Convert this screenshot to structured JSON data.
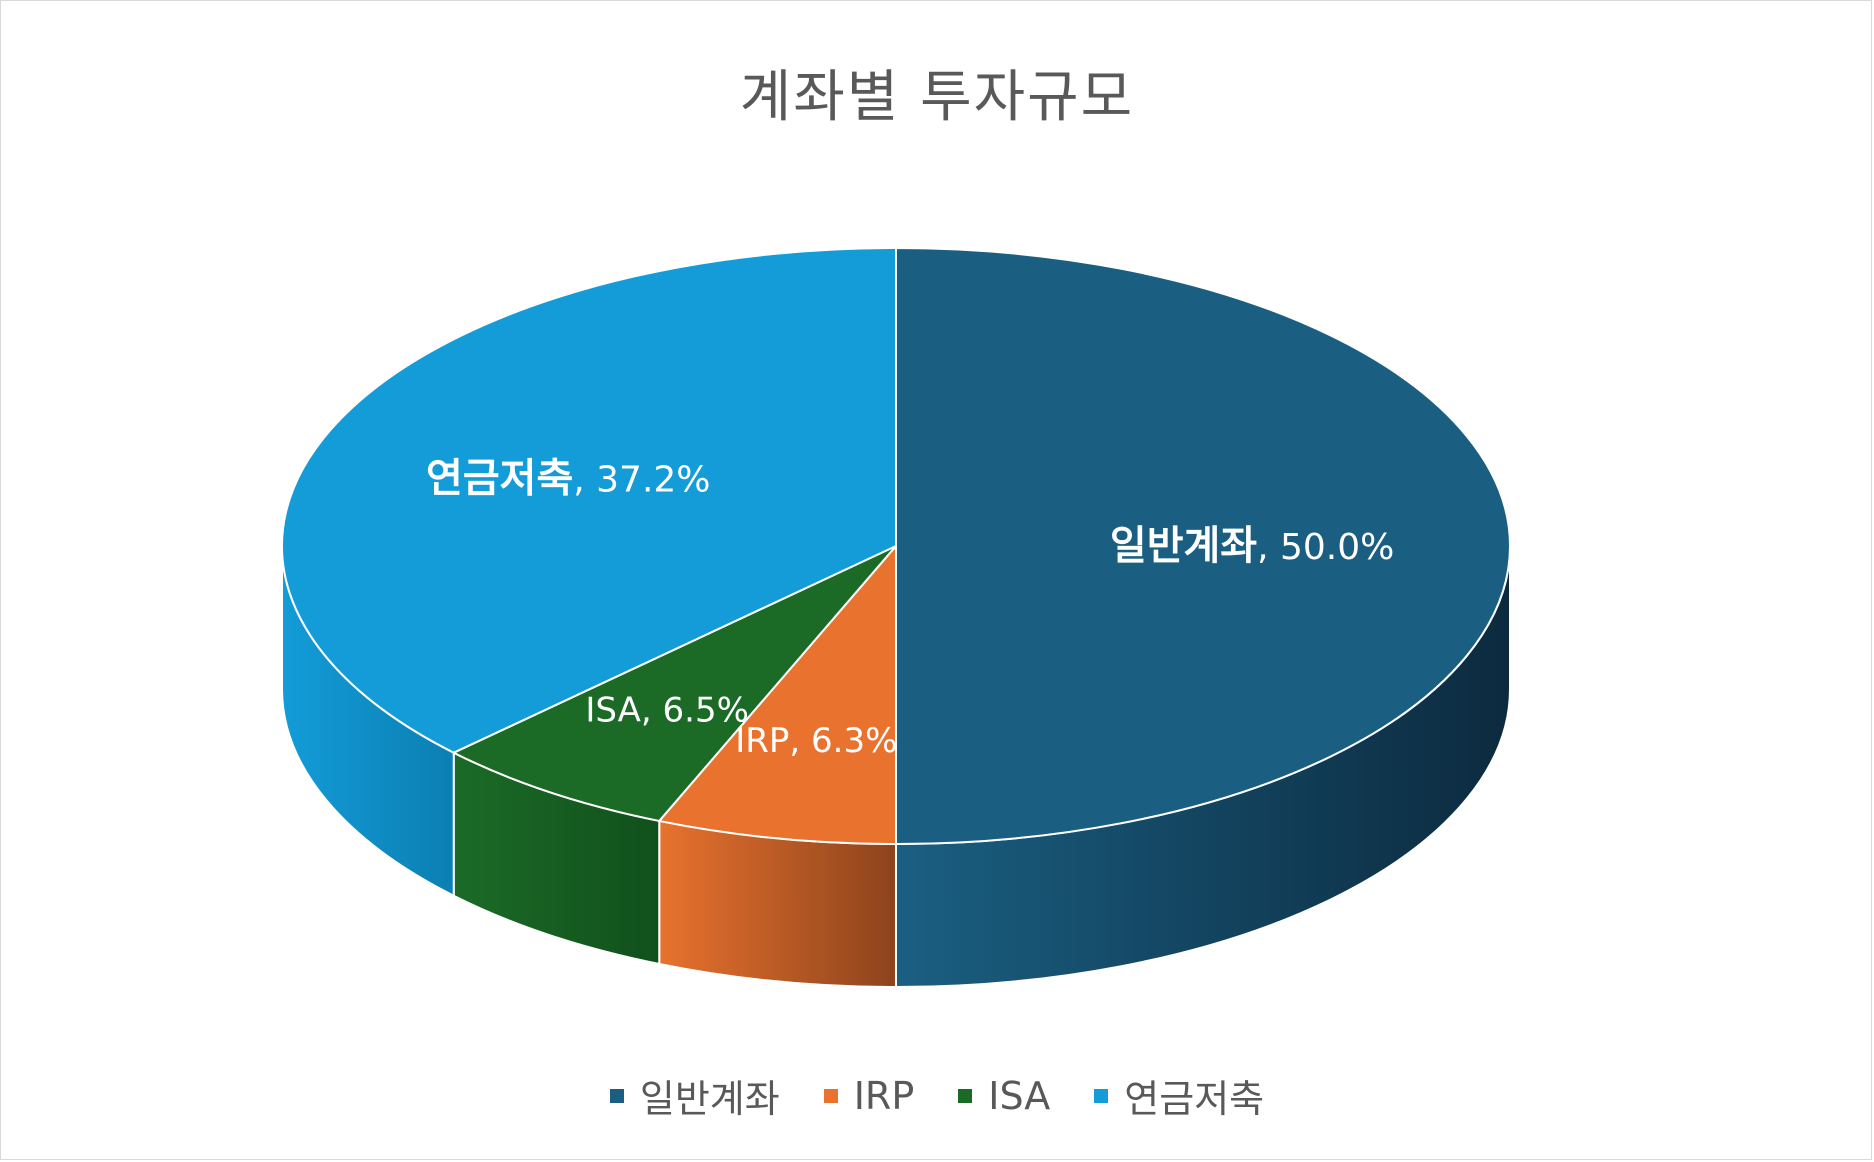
{
  "chart_data": {
    "type": "pie",
    "title": "계좌별 투자규모",
    "style": "3d",
    "categories": [
      "일반계좌",
      "IRP",
      "ISA",
      "연금저축"
    ],
    "values": [
      50.0,
      6.3,
      6.5,
      37.2
    ],
    "value_labels": [
      "50.0%",
      "6.3%",
      "6.5%",
      "37.2%"
    ],
    "colors": [
      "#1a5f82",
      "#e8722e",
      "#1b6b27",
      "#139cd8"
    ],
    "side_colors": [
      "#0c2a3e",
      "#8d431c",
      "#11501c",
      "#0b7fb3"
    ],
    "legend_position": "bottom"
  }
}
